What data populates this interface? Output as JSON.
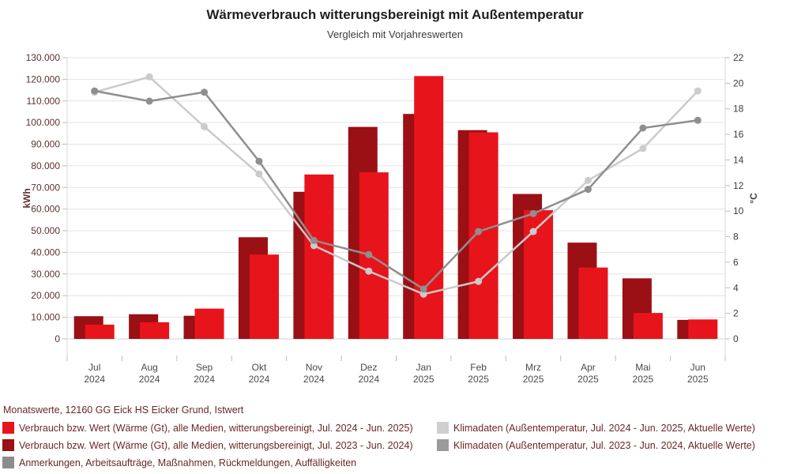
{
  "title": "Wärmeverbrauch witterungsbereinigt mit Außentemperatur",
  "subtitle": "Vergleich mit Vorjahreswerten",
  "chart_data": {
    "type": "combo-bar-line",
    "title": "Wärmeverbrauch witterungsbereinigt mit Außentemperatur",
    "subtitle": "Vergleich mit Vorjahreswerten",
    "grid": true,
    "legend_position": "bottom",
    "categories": [
      {
        "month": "Jul",
        "year": "2024"
      },
      {
        "month": "Aug",
        "year": "2024"
      },
      {
        "month": "Sep",
        "year": "2024"
      },
      {
        "month": "Okt",
        "year": "2024"
      },
      {
        "month": "Nov",
        "year": "2024"
      },
      {
        "month": "Dez",
        "year": "2024"
      },
      {
        "month": "Jan",
        "year": "2025"
      },
      {
        "month": "Feb",
        "year": "2025"
      },
      {
        "month": "Mrz",
        "year": "2025"
      },
      {
        "month": "Apr",
        "year": "2025"
      },
      {
        "month": "Mai",
        "year": "2025"
      },
      {
        "month": "Jun",
        "year": "2025"
      }
    ],
    "left_axis": {
      "label": "kWh",
      "min": 0,
      "max": 130000,
      "step": 10000,
      "tick_labels": [
        "0",
        "10.000",
        "20.000",
        "30.000",
        "40.000",
        "50.000",
        "60.000",
        "70.000",
        "80.000",
        "90.000",
        "100.000",
        "110.000",
        "120.000",
        "130.000"
      ]
    },
    "right_axis": {
      "label": "°C",
      "min": 0,
      "max": 22,
      "step": 2,
      "tick_labels": [
        "0",
        "2",
        "4",
        "6",
        "8",
        "10",
        "12",
        "14",
        "16",
        "18",
        "20",
        "22"
      ]
    },
    "series": [
      {
        "name": "Verbrauch bzw. Wert (Wärme (Gt), alle Medien, witterungsbereinigt, Jul. 2024 - Jun. 2025)",
        "type": "bar",
        "axis": "left",
        "color": "#e8141c",
        "values": [
          6600,
          7700,
          14000,
          39000,
          76000,
          77000,
          121500,
          95500,
          59500,
          33000,
          12000,
          9000
        ]
      },
      {
        "name": "Verbrauch bzw. Wert (Wärme (Gt), alle Medien, witterungsbereinigt, Jul. 2023 - Jun. 2024)",
        "type": "bar",
        "axis": "left",
        "color": "#9a1014",
        "values": [
          10500,
          11400,
          10700,
          47000,
          68000,
          98000,
          104000,
          96500,
          67000,
          44500,
          28000,
          8800
        ]
      },
      {
        "name": "Klimadaten (Außentemperatur, Jul. 2024 - Jun. 2025, Aktuelle Werte)",
        "type": "line",
        "axis": "right",
        "color": "#cbcbcb",
        "values": [
          19.3,
          20.5,
          16.6,
          12.9,
          7.3,
          5.3,
          3.5,
          4.5,
          8.4,
          12.4,
          14.9,
          19.4
        ]
      },
      {
        "name": "Klimadaten (Außentemperatur, Jul. 2023 - Jun. 2024, Aktuelle Werte)",
        "type": "line",
        "axis": "right",
        "color": "#8f8f8f",
        "values": [
          19.4,
          18.6,
          19.3,
          13.9,
          7.7,
          6.6,
          3.9,
          8.4,
          9.8,
          11.7,
          16.5,
          17.1
        ]
      }
    ],
    "legend": {
      "header": "Monatswerte, 12160 GG Eick HS Eicker Grund, Istwert",
      "items": [
        {
          "label": "Verbrauch bzw. Wert (Wärme (Gt), alle Medien, witterungsbereinigt, Jul. 2024 - Jun. 2025)",
          "color": "#e8141c",
          "column": 1,
          "row": 0
        },
        {
          "label": "Verbrauch bzw. Wert (Wärme (Gt), alle Medien, witterungsbereinigt, Jul. 2023 - Jun. 2024)",
          "color": "#9a1014",
          "column": 1,
          "row": 1
        },
        {
          "label": "Anmerkungen, Arbeitsaufträge, Maßnahmen, Rückmeldungen, Auffälligkeiten",
          "color": "#8c8c8c",
          "column": 1,
          "row": 2
        },
        {
          "label": "Klimadaten (Außentemperatur, Jul. 2024 - Jun. 2025, Aktuelle Werte)",
          "color": "#cfcfcf",
          "column": 2,
          "row": 0
        },
        {
          "label": "Klimadaten (Außentemperatur, Jul. 2023 - Jun. 2024, Aktuelle Werte)",
          "color": "#9b9b9b",
          "column": 2,
          "row": 1
        }
      ]
    },
    "colors": {
      "grid": "#e4e4e4",
      "zero_line": "#d2d2d2",
      "axis_line": "#d9d9d9",
      "tick": "#bbbbbb",
      "left_tick_text": "#5e3131",
      "right_tick_text": "#3d3d3d",
      "month_text": "#4a4a4a"
    }
  }
}
